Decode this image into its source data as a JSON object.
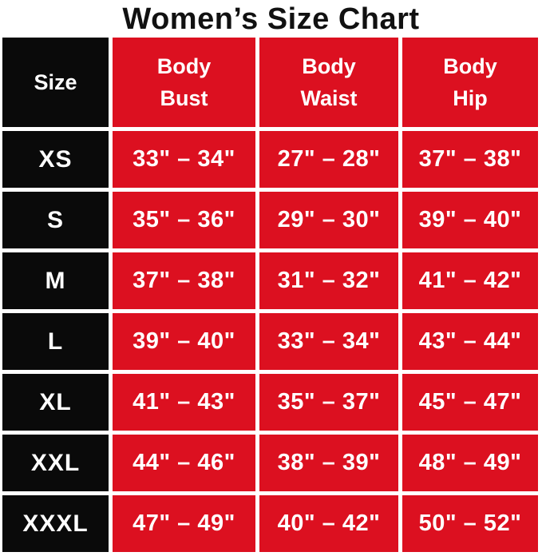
{
  "title": "Women’s Size Chart",
  "colors": {
    "red": "#DC1020",
    "black": "#0A0A0A",
    "text": "#FFFFFF",
    "title": "#111111"
  },
  "chart_data": {
    "type": "table",
    "title": "Women’s Size Chart",
    "columns": [
      "Size",
      "Body Bust",
      "Body Waist",
      "Body Hip"
    ],
    "header_display": {
      "size": "Size",
      "bust": [
        "Body",
        "Bust"
      ],
      "waist": [
        "Body",
        "Waist"
      ],
      "hip": [
        "Body",
        "Hip"
      ]
    },
    "rows": [
      {
        "size": "XS",
        "bust": "33\" – 34\"",
        "waist": "27\" – 28\"",
        "hip": "37\" – 38\""
      },
      {
        "size": "S",
        "bust": "35\" – 36\"",
        "waist": "29\" – 30\"",
        "hip": "39\" – 40\""
      },
      {
        "size": "M",
        "bust": "37\" – 38\"",
        "waist": "31\" – 32\"",
        "hip": "41\" – 42\""
      },
      {
        "size": "L",
        "bust": "39\" – 40\"",
        "waist": "33\" – 34\"",
        "hip": "43\" – 44\""
      },
      {
        "size": "XL",
        "bust": "41\" – 43\"",
        "waist": "35\" – 37\"",
        "hip": "45\" – 47\""
      },
      {
        "size": "XXL",
        "bust": "44\" – 46\"",
        "waist": "38\" – 39\"",
        "hip": "48\" – 49\""
      },
      {
        "size": "XXXL",
        "bust": "47\" – 49\"",
        "waist": "40\" – 42\"",
        "hip": "50\" – 52\""
      }
    ]
  }
}
